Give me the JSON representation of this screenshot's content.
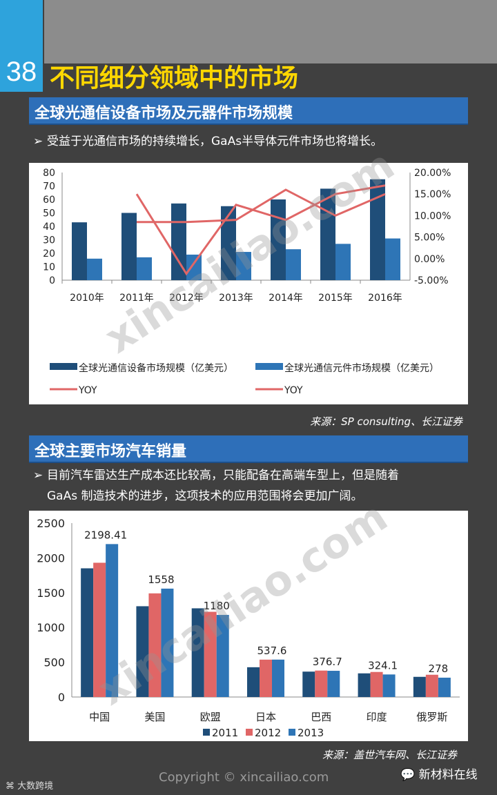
{
  "page": {
    "number": "38",
    "title": "不同细分领域中的市场",
    "copyright": "Copyright © xincailiao.com",
    "footer_left": "大数跨境",
    "footer_right": "新材料在线",
    "watermark": "xincailiao.com"
  },
  "colors": {
    "accent": "#2ea3dc",
    "title": "#ffd700",
    "header": "#2e6fb9",
    "dark_blue": "#1f4e79",
    "mid_blue": "#2e75b6",
    "red": "#e06666"
  },
  "section1": {
    "header": "全球光通信设备市场及元器件市场规模",
    "bullet": "受益于光通信市场的持续增长，GaAs半导体元件市场也将增长。",
    "source": "来源：SP consulting、长江证券"
  },
  "section2": {
    "header": "全球主要市场汽车销量",
    "bullet_line1": "目前汽车雷达生产成本还比较高，只能配备在高端车型上，但是随着",
    "bullet_line2": "GaAs 制造技术的进步，这项技术的应用范围将会更加广阔。",
    "source": "来源：盖世汽车网、长江证券"
  },
  "chart_data": [
    {
      "type": "bar",
      "categories": [
        "2010年",
        "2011年",
        "2012年",
        "2013年",
        "2014年",
        "2015年",
        "2016年"
      ],
      "series": [
        {
          "name": "全球光通信设备市场规模（亿美元）",
          "values": [
            43,
            50,
            57,
            55,
            60,
            68,
            75
          ],
          "color": "#1f4e79"
        },
        {
          "name": "全球光通信元件市场规模（亿美元）",
          "values": [
            16,
            17,
            19,
            21,
            23,
            27,
            31
          ],
          "color": "#2e75b6"
        },
        {
          "name": "YOY",
          "type": "line",
          "axis": "right",
          "values": [
            null,
            15.0,
            -3.5,
            12.5,
            9.0,
            15.0,
            17.0
          ],
          "color": "#e06666"
        },
        {
          "name": "YOY",
          "type": "line",
          "axis": "right",
          "values": [
            null,
            8.5,
            8.5,
            9.0,
            16.0,
            10.0,
            15.0
          ],
          "color": "#e06666"
        }
      ],
      "ylim": [
        0,
        80
      ],
      "yticks": [
        "0",
        "10",
        "20",
        "30",
        "40",
        "50",
        "60",
        "70",
        "80"
      ],
      "y2lim": [
        -5,
        20
      ],
      "y2ticks": [
        "-5.00%",
        "0.00%",
        "5.00%",
        "10.00%",
        "15.00%",
        "20.00%"
      ],
      "legend": "bottom"
    },
    {
      "type": "bar",
      "categories": [
        "中国",
        "美国",
        "欧盟",
        "日本",
        "巴西",
        "印度",
        "俄罗斯"
      ],
      "series": [
        {
          "name": "2011",
          "values": [
            1850,
            1305,
            1275,
            428,
            365,
            340,
            290
          ],
          "color": "#1f4e79"
        },
        {
          "name": "2012",
          "values": [
            1930,
            1490,
            1225,
            537,
            380,
            360,
            320
          ],
          "color": "#e06666"
        },
        {
          "name": "2013",
          "values": [
            2198.41,
            1558,
            1180,
            537.6,
            376.7,
            324.1,
            278
          ],
          "color": "#2e75b6"
        }
      ],
      "data_labels": [
        "2198.41",
        "1558",
        "1180",
        "537.6",
        "376.7",
        "324.1",
        "278"
      ],
      "ylim": [
        0,
        2500
      ],
      "yticks": [
        "0",
        "500",
        "1000",
        "1500",
        "2000",
        "2500"
      ],
      "legend": "bottom"
    }
  ]
}
